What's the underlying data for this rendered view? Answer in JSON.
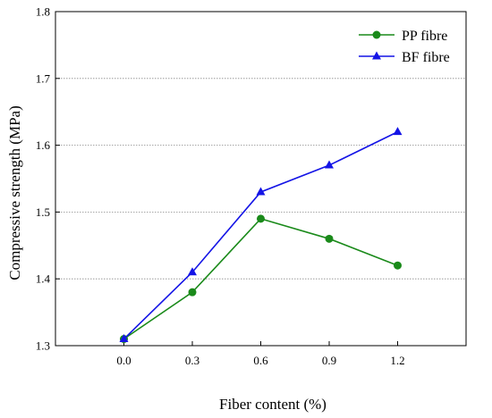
{
  "chart_data": {
    "type": "line",
    "title": "",
    "xlabel": "Fiber content (%)",
    "ylabel": "Compressive strength (MPa)",
    "x": [
      0.0,
      0.3,
      0.6,
      0.9,
      1.2
    ],
    "x_tick_labels": [
      "0.0",
      "0.3",
      "0.6",
      "0.9",
      "1.2"
    ],
    "xlim": [
      -0.3,
      1.5
    ],
    "ylim": [
      1.3,
      1.8
    ],
    "y_ticks": [
      1.3,
      1.4,
      1.5,
      1.6,
      1.7,
      1.8
    ],
    "y_tick_labels": [
      "1.3",
      "1.4",
      "1.5",
      "1.6",
      "1.7",
      "1.8"
    ],
    "grid": "horizontal dotted",
    "legend_position": "top-right",
    "series": [
      {
        "name": "PP fibre",
        "color": "#1a8a1a",
        "marker": "circle",
        "values": [
          1.31,
          1.38,
          1.49,
          1.46,
          1.42
        ]
      },
      {
        "name": "BF fibre",
        "color": "#1414e6",
        "marker": "triangle",
        "values": [
          1.31,
          1.41,
          1.53,
          1.57,
          1.62
        ]
      }
    ]
  }
}
